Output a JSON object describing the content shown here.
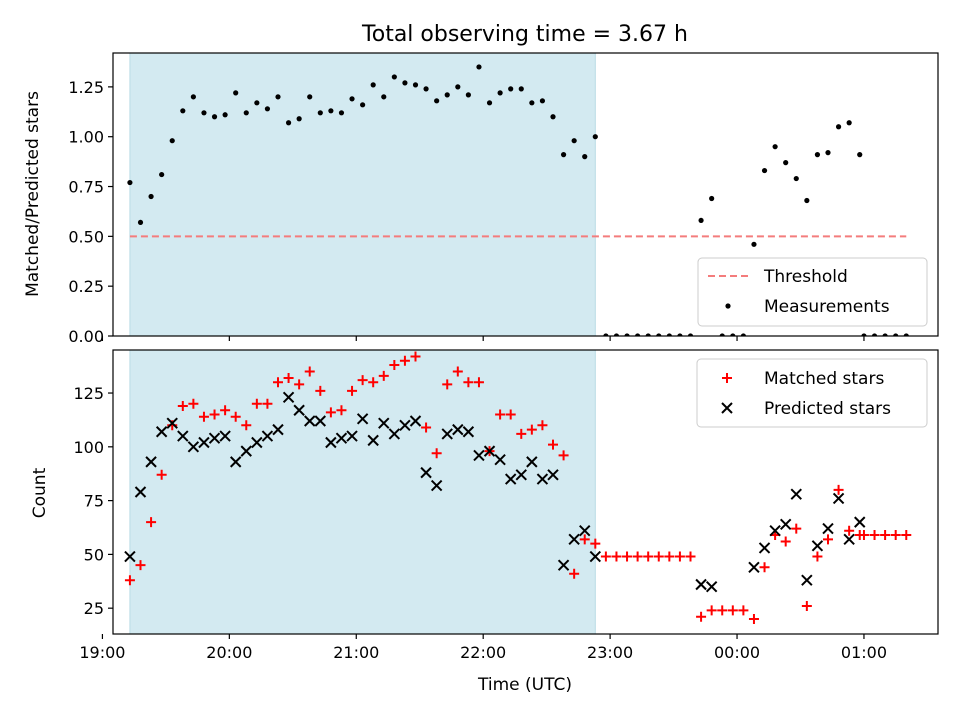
{
  "chart_data": [
    {
      "type": "scatter",
      "title": "Total observing time = 3.67 h",
      "ylabel": "Matched/Predicted stars",
      "xlabel": "",
      "xlim": [
        "19:05",
        "01:35"
      ],
      "ylim": [
        0,
        1.42
      ],
      "yticks": [
        0.0,
        0.25,
        0.5,
        0.75,
        1.0,
        1.25
      ],
      "ytick_labels": [
        "0.00",
        "0.25",
        "0.50",
        "0.75",
        "1.00",
        "1.25"
      ],
      "shaded_region": {
        "start": "19:13",
        "end": "22:53",
        "color": "#d3eaf1"
      },
      "threshold": {
        "name": "Threshold",
        "value": 0.5,
        "start": "19:13",
        "end": "01:20",
        "color": "#f47c7c",
        "style": "dashed"
      },
      "legend": {
        "position": "lower-right",
        "entries": [
          "Threshold",
          "Measurements"
        ]
      },
      "series": [
        {
          "name": "Measurements",
          "color": "#000000",
          "points": [
            [
              "19:13",
              0.77
            ],
            [
              "19:18",
              0.57
            ],
            [
              "19:23",
              0.7
            ],
            [
              "19:28",
              0.81
            ],
            [
              "19:33",
              0.98
            ],
            [
              "19:38",
              1.13
            ],
            [
              "19:43",
              1.2
            ],
            [
              "19:48",
              1.12
            ],
            [
              "19:53",
              1.1
            ],
            [
              "19:58",
              1.11
            ],
            [
              "20:03",
              1.22
            ],
            [
              "20:08",
              1.12
            ],
            [
              "20:13",
              1.17
            ],
            [
              "20:18",
              1.14
            ],
            [
              "20:23",
              1.2
            ],
            [
              "20:28",
              1.07
            ],
            [
              "20:33",
              1.09
            ],
            [
              "20:38",
              1.2
            ],
            [
              "20:43",
              1.12
            ],
            [
              "20:48",
              1.13
            ],
            [
              "20:53",
              1.12
            ],
            [
              "20:58",
              1.19
            ],
            [
              "21:03",
              1.16
            ],
            [
              "21:08",
              1.26
            ],
            [
              "21:13",
              1.2
            ],
            [
              "21:18",
              1.3
            ],
            [
              "21:23",
              1.27
            ],
            [
              "21:28",
              1.26
            ],
            [
              "21:33",
              1.24
            ],
            [
              "21:38",
              1.18
            ],
            [
              "21:43",
              1.21
            ],
            [
              "21:48",
              1.25
            ],
            [
              "21:53",
              1.21
            ],
            [
              "21:58",
              1.35
            ],
            [
              "22:03",
              1.17
            ],
            [
              "22:08",
              1.22
            ],
            [
              "22:13",
              1.24
            ],
            [
              "22:18",
              1.24
            ],
            [
              "22:23",
              1.17
            ],
            [
              "22:28",
              1.18
            ],
            [
              "22:33",
              1.1
            ],
            [
              "22:38",
              0.91
            ],
            [
              "22:43",
              0.98
            ],
            [
              "22:48",
              0.9
            ],
            [
              "22:53",
              1.0
            ],
            [
              "22:58",
              0.0
            ],
            [
              "23:03",
              0.0
            ],
            [
              "23:08",
              0.0
            ],
            [
              "23:13",
              0.0
            ],
            [
              "23:18",
              0.0
            ],
            [
              "23:23",
              0.0
            ],
            [
              "23:28",
              0.0
            ],
            [
              "23:33",
              0.0
            ],
            [
              "23:38",
              0.0
            ],
            [
              "23:43",
              0.58
            ],
            [
              "23:48",
              0.69
            ],
            [
              "23:53",
              0.0
            ],
            [
              "23:58",
              0.0
            ],
            [
              "00:03",
              0.0
            ],
            [
              "00:08",
              0.46
            ],
            [
              "00:13",
              0.83
            ],
            [
              "00:18",
              0.95
            ],
            [
              "00:23",
              0.87
            ],
            [
              "00:28",
              0.79
            ],
            [
              "00:33",
              0.68
            ],
            [
              "00:38",
              0.91
            ],
            [
              "00:43",
              0.92
            ],
            [
              "00:48",
              1.05
            ],
            [
              "00:53",
              1.07
            ],
            [
              "00:58",
              0.91
            ],
            [
              "01:00",
              0.0
            ],
            [
              "01:05",
              0.0
            ],
            [
              "01:10",
              0.0
            ],
            [
              "01:15",
              0.0
            ],
            [
              "01:20",
              0.0
            ]
          ]
        }
      ]
    },
    {
      "type": "scatter",
      "title": "",
      "ylabel": "Count",
      "xlabel": "Time (UTC)",
      "xlim": [
        "19:05",
        "01:35"
      ],
      "ylim": [
        13,
        145
      ],
      "yticks": [
        25,
        50,
        75,
        100,
        125
      ],
      "ytick_labels": [
        "25",
        "50",
        "75",
        "100",
        "125"
      ],
      "xticks": [
        "19:00",
        "20:00",
        "21:00",
        "22:00",
        "23:00",
        "00:00",
        "01:00"
      ],
      "shaded_region": {
        "start": "19:13",
        "end": "22:53",
        "color": "#d3eaf1"
      },
      "legend": {
        "position": "top-right",
        "entries": [
          "Matched stars",
          "Predicted stars"
        ]
      },
      "series": [
        {
          "name": "Matched stars",
          "marker": "+",
          "color": "#ff0000",
          "points": [
            [
              "19:13",
              38
            ],
            [
              "19:18",
              45
            ],
            [
              "19:23",
              65
            ],
            [
              "19:28",
              87
            ],
            [
              "19:33",
              110
            ],
            [
              "19:38",
              119
            ],
            [
              "19:43",
              120
            ],
            [
              "19:48",
              114
            ],
            [
              "19:53",
              115
            ],
            [
              "19:58",
              117
            ],
            [
              "20:03",
              114
            ],
            [
              "20:08",
              110
            ],
            [
              "20:13",
              120
            ],
            [
              "20:18",
              120
            ],
            [
              "20:23",
              130
            ],
            [
              "20:28",
              132
            ],
            [
              "20:33",
              129
            ],
            [
              "20:38",
              135
            ],
            [
              "20:43",
              126
            ],
            [
              "20:48",
              116
            ],
            [
              "20:53",
              117
            ],
            [
              "20:58",
              126
            ],
            [
              "21:03",
              131
            ],
            [
              "21:08",
              130
            ],
            [
              "21:13",
              133
            ],
            [
              "21:18",
              138
            ],
            [
              "21:23",
              140
            ],
            [
              "21:28",
              142
            ],
            [
              "21:33",
              109
            ],
            [
              "21:38",
              97
            ],
            [
              "21:43",
              129
            ],
            [
              "21:48",
              135
            ],
            [
              "21:53",
              130
            ],
            [
              "21:58",
              130
            ],
            [
              "22:03",
              98
            ],
            [
              "22:08",
              115
            ],
            [
              "22:13",
              115
            ],
            [
              "22:18",
              106
            ],
            [
              "22:23",
              108
            ],
            [
              "22:28",
              110
            ],
            [
              "22:33",
              101
            ],
            [
              "22:38",
              96
            ],
            [
              "22:43",
              41
            ],
            [
              "22:48",
              57
            ],
            [
              "22:53",
              55
            ],
            [
              "22:58",
              49
            ],
            [
              "23:03",
              49
            ],
            [
              "23:08",
              49
            ],
            [
              "23:13",
              49
            ],
            [
              "23:18",
              49
            ],
            [
              "23:23",
              49
            ],
            [
              "23:28",
              49
            ],
            [
              "23:33",
              49
            ],
            [
              "23:38",
              49
            ],
            [
              "23:43",
              21
            ],
            [
              "23:48",
              24
            ],
            [
              "23:53",
              24
            ],
            [
              "23:58",
              24
            ],
            [
              "00:03",
              24
            ],
            [
              "00:08",
              20
            ],
            [
              "00:13",
              44
            ],
            [
              "00:18",
              59
            ],
            [
              "00:23",
              56
            ],
            [
              "00:28",
              62
            ],
            [
              "00:33",
              26
            ],
            [
              "00:38",
              49
            ],
            [
              "00:43",
              57
            ],
            [
              "00:48",
              80
            ],
            [
              "00:53",
              61
            ],
            [
              "00:58",
              59
            ],
            [
              "01:00",
              59
            ],
            [
              "01:05",
              59
            ],
            [
              "01:10",
              59
            ],
            [
              "01:15",
              59
            ],
            [
              "01:20",
              59
            ]
          ]
        },
        {
          "name": "Predicted stars",
          "marker": "x",
          "color": "#000000",
          "points": [
            [
              "19:13",
              49
            ],
            [
              "19:18",
              79
            ],
            [
              "19:23",
              93
            ],
            [
              "19:28",
              107
            ],
            [
              "19:33",
              111
            ],
            [
              "19:38",
              105
            ],
            [
              "19:43",
              100
            ],
            [
              "19:48",
              102
            ],
            [
              "19:53",
              104
            ],
            [
              "19:58",
              105
            ],
            [
              "20:03",
              93
            ],
            [
              "20:08",
              98
            ],
            [
              "20:13",
              102
            ],
            [
              "20:18",
              105
            ],
            [
              "20:23",
              108
            ],
            [
              "20:28",
              123
            ],
            [
              "20:33",
              117
            ],
            [
              "20:38",
              112
            ],
            [
              "20:43",
              112
            ],
            [
              "20:48",
              102
            ],
            [
              "20:53",
              104
            ],
            [
              "20:58",
              105
            ],
            [
              "21:03",
              113
            ],
            [
              "21:08",
              103
            ],
            [
              "21:13",
              111
            ],
            [
              "21:18",
              106
            ],
            [
              "21:23",
              110
            ],
            [
              "21:28",
              112
            ],
            [
              "21:33",
              88
            ],
            [
              "21:38",
              82
            ],
            [
              "21:43",
              106
            ],
            [
              "21:48",
              108
            ],
            [
              "21:53",
              107
            ],
            [
              "21:58",
              96
            ],
            [
              "22:03",
              98
            ],
            [
              "22:08",
              94
            ],
            [
              "22:13",
              85
            ],
            [
              "22:18",
              87
            ],
            [
              "22:23",
              93
            ],
            [
              "22:28",
              85
            ],
            [
              "22:33",
              87
            ],
            [
              "22:38",
              45
            ],
            [
              "22:43",
              57
            ],
            [
              "22:48",
              61
            ],
            [
              "22:53",
              49
            ],
            [
              "23:43",
              36
            ],
            [
              "23:48",
              35
            ],
            [
              "00:08",
              44
            ],
            [
              "00:13",
              53
            ],
            [
              "00:18",
              61
            ],
            [
              "00:23",
              64
            ],
            [
              "00:28",
              78
            ],
            [
              "00:33",
              38
            ],
            [
              "00:38",
              54
            ],
            [
              "00:43",
              62
            ],
            [
              "00:48",
              76
            ],
            [
              "00:53",
              57
            ],
            [
              "00:58",
              65
            ]
          ]
        }
      ]
    }
  ]
}
